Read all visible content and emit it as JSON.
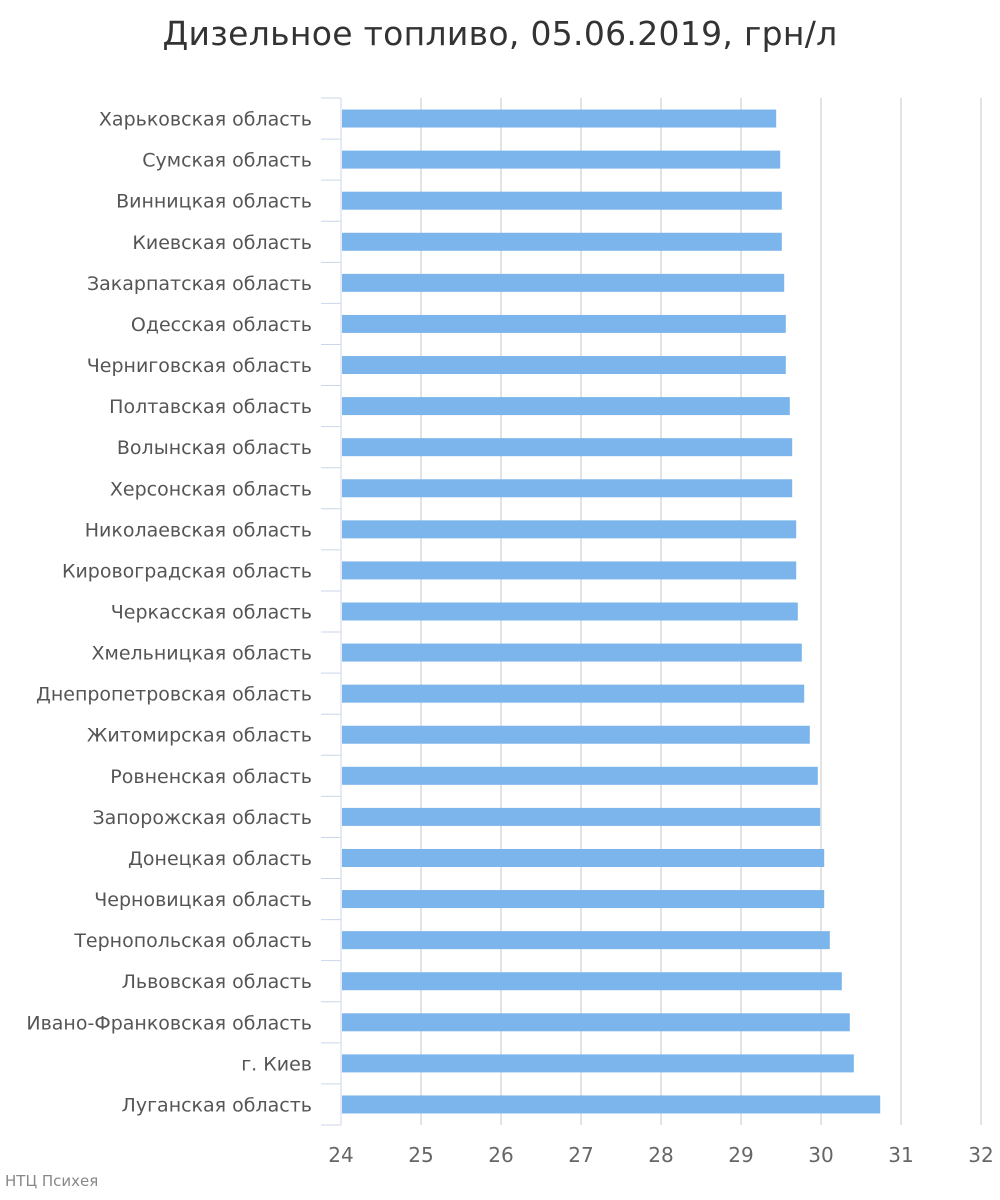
{
  "chart_data": {
    "type": "bar",
    "orientation": "horizontal",
    "title": "Дизельное топливо, 05.06.2019, грн/л",
    "xlabel": "",
    "ylabel": "",
    "xlim": [
      24,
      32
    ],
    "ticks": [
      "24",
      "25",
      "26",
      "27",
      "28",
      "29",
      "30",
      "31",
      "32"
    ],
    "grid": true,
    "bar_color": "#7cb5ec",
    "categories": [
      "Харьковская область",
      "Сумская область",
      "Винницкая область",
      "Киевская область",
      "Закарпатская область",
      "Одесская область",
      "Черниговская область",
      "Полтавская область",
      "Волынская область",
      "Херсонская область",
      "Николаевская область",
      "Кировоградская область",
      "Черкасская область",
      "Хмельницкая область",
      "Днепропетровская область",
      "Житомирская область",
      "Ровненская область",
      "Запорожская область",
      "Донецкая область",
      "Черновицкая область",
      "Тернопольская область",
      "Львовская область",
      "Ивано-Франковская область",
      "г. Киев",
      "Луганская область"
    ],
    "values": [
      29.44,
      29.49,
      29.51,
      29.51,
      29.54,
      29.56,
      29.56,
      29.61,
      29.64,
      29.64,
      29.69,
      29.69,
      29.71,
      29.76,
      29.79,
      29.86,
      29.96,
      29.99,
      30.04,
      30.04,
      30.11,
      30.26,
      30.36,
      30.41,
      30.74
    ]
  },
  "credit": "НТЦ Психея"
}
